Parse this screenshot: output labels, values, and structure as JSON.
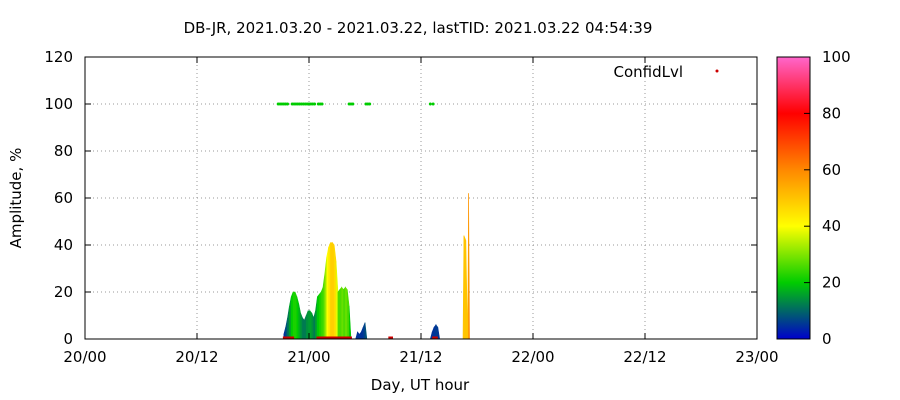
{
  "chart_data": {
    "type": "area",
    "title": "DB-JR, 2021.03.20 - 2021.03.22, lastTID: 2021.03.22 04:54:39",
    "xlabel": "Day, UT hour",
    "ylabel": "Amplitude, %",
    "xlim": [
      0,
      72
    ],
    "ylim": [
      0,
      120
    ],
    "x_ticks": [
      {
        "value": 0,
        "label": "20/00"
      },
      {
        "value": 12,
        "label": "20/12"
      },
      {
        "value": 24,
        "label": "21/00"
      },
      {
        "value": 36,
        "label": "21/12"
      },
      {
        "value": 48,
        "label": "22/00"
      },
      {
        "value": 60,
        "label": "22/12"
      },
      {
        "value": 72,
        "label": "23/00"
      }
    ],
    "y_ticks": [
      0,
      20,
      40,
      60,
      80,
      100,
      120
    ],
    "grid": true,
    "legend": {
      "label": "ConfidLvl",
      "position": "top-right"
    },
    "colorbar": {
      "min": 0,
      "max": 100,
      "ticks": [
        0,
        20,
        40,
        60,
        80,
        100
      ],
      "stops": [
        "#0000cc",
        "#00cc00",
        "#ffff00",
        "#ff8800",
        "#ff0000",
        "#ff66cc"
      ]
    },
    "amplitude_series": [
      {
        "x": 21.3,
        "y": 2
      },
      {
        "x": 21.5,
        "y": 5
      },
      {
        "x": 21.7,
        "y": 9
      },
      {
        "x": 21.9,
        "y": 14
      },
      {
        "x": 22.1,
        "y": 18
      },
      {
        "x": 22.3,
        "y": 20
      },
      {
        "x": 22.5,
        "y": 20
      },
      {
        "x": 22.7,
        "y": 18
      },
      {
        "x": 22.9,
        "y": 15
      },
      {
        "x": 23.1,
        "y": 11
      },
      {
        "x": 23.3,
        "y": 9
      },
      {
        "x": 23.5,
        "y": 8
      },
      {
        "x": 23.7,
        "y": 10
      },
      {
        "x": 23.9,
        "y": 12
      },
      {
        "x": 24.1,
        "y": 12
      },
      {
        "x": 24.3,
        "y": 11
      },
      {
        "x": 24.5,
        "y": 9
      },
      {
        "x": 24.7,
        "y": 12
      },
      {
        "x": 24.9,
        "y": 18
      },
      {
        "x": 25.1,
        "y": 19
      },
      {
        "x": 25.3,
        "y": 20
      },
      {
        "x": 25.5,
        "y": 22
      },
      {
        "x": 25.7,
        "y": 28
      },
      {
        "x": 25.9,
        "y": 35
      },
      {
        "x": 26.1,
        "y": 39
      },
      {
        "x": 26.3,
        "y": 41
      },
      {
        "x": 26.5,
        "y": 41
      },
      {
        "x": 26.7,
        "y": 40
      },
      {
        "x": 26.9,
        "y": 33
      },
      {
        "x": 27.1,
        "y": 20
      },
      {
        "x": 27.3,
        "y": 21
      },
      {
        "x": 27.5,
        "y": 22
      },
      {
        "x": 27.7,
        "y": 21
      },
      {
        "x": 27.9,
        "y": 22
      },
      {
        "x": 28.1,
        "y": 21
      },
      {
        "x": 28.3,
        "y": 14
      },
      {
        "x": 28.5,
        "y": 0
      },
      {
        "x": 29.0,
        "y": 0
      },
      {
        "x": 29.2,
        "y": 3
      },
      {
        "x": 29.4,
        "y": 2
      },
      {
        "x": 29.6,
        "y": 3
      },
      {
        "x": 29.8,
        "y": 5
      },
      {
        "x": 30.0,
        "y": 7
      },
      {
        "x": 30.2,
        "y": 0
      },
      {
        "x": 31.0,
        "y": 0
      },
      {
        "x": 31.2,
        "y": 0
      },
      {
        "x": 31.5,
        "y": 0
      },
      {
        "x": 33.0,
        "y": 0
      },
      {
        "x": 35.0,
        "y": 0
      },
      {
        "x": 37.0,
        "y": 0
      },
      {
        "x": 37.2,
        "y": 3
      },
      {
        "x": 37.4,
        "y": 5
      },
      {
        "x": 37.6,
        "y": 6
      },
      {
        "x": 37.8,
        "y": 5
      },
      {
        "x": 38.0,
        "y": 0
      },
      {
        "x": 40.5,
        "y": 0
      },
      {
        "x": 40.6,
        "y": 44
      },
      {
        "x": 40.8,
        "y": 42
      },
      {
        "x": 41.0,
        "y": 0
      },
      {
        "x": 41.1,
        "y": 62
      },
      {
        "x": 41.2,
        "y": 0
      }
    ],
    "confidence_series": [
      {
        "x": 21.3,
        "c": 5
      },
      {
        "x": 21.5,
        "c": 8
      },
      {
        "x": 21.7,
        "c": 12
      },
      {
        "x": 21.9,
        "c": 16
      },
      {
        "x": 22.1,
        "c": 20
      },
      {
        "x": 22.3,
        "c": 22
      },
      {
        "x": 22.5,
        "c": 22
      },
      {
        "x": 22.7,
        "c": 20
      },
      {
        "x": 22.9,
        "c": 17
      },
      {
        "x": 23.1,
        "c": 14
      },
      {
        "x": 23.3,
        "c": 12
      },
      {
        "x": 23.5,
        "c": 12
      },
      {
        "x": 23.7,
        "c": 14
      },
      {
        "x": 23.9,
        "c": 15
      },
      {
        "x": 24.1,
        "c": 16
      },
      {
        "x": 24.3,
        "c": 14
      },
      {
        "x": 24.5,
        "c": 12
      },
      {
        "x": 24.7,
        "c": 16
      },
      {
        "x": 24.9,
        "c": 20
      },
      {
        "x": 25.1,
        "c": 22
      },
      {
        "x": 25.3,
        "c": 24
      },
      {
        "x": 25.5,
        "c": 26
      },
      {
        "x": 25.7,
        "c": 32
      },
      {
        "x": 25.9,
        "c": 40
      },
      {
        "x": 26.1,
        "c": 44
      },
      {
        "x": 26.3,
        "c": 48
      },
      {
        "x": 26.5,
        "c": 48
      },
      {
        "x": 26.7,
        "c": 46
      },
      {
        "x": 26.9,
        "c": 38
      },
      {
        "x": 27.1,
        "c": 26
      },
      {
        "x": 27.3,
        "c": 26
      },
      {
        "x": 27.5,
        "c": 28
      },
      {
        "x": 27.7,
        "c": 26
      },
      {
        "x": 27.9,
        "c": 28
      },
      {
        "x": 28.1,
        "c": 26
      },
      {
        "x": 28.3,
        "c": 20
      },
      {
        "x": 28.5,
        "c": 10
      },
      {
        "x": 29.0,
        "c": 5
      },
      {
        "x": 29.2,
        "c": 5
      },
      {
        "x": 29.4,
        "c": 5
      },
      {
        "x": 29.6,
        "c": 5
      },
      {
        "x": 29.8,
        "c": 6
      },
      {
        "x": 30.0,
        "c": 8
      },
      {
        "x": 30.2,
        "c": 5
      },
      {
        "x": 31.0,
        "c": 5
      },
      {
        "x": 31.2,
        "c": 5
      },
      {
        "x": 31.5,
        "c": 5
      },
      {
        "x": 33.0,
        "c": 5
      },
      {
        "x": 35.0,
        "c": 5
      },
      {
        "x": 37.0,
        "c": 5
      },
      {
        "x": 37.2,
        "c": 5
      },
      {
        "x": 37.4,
        "c": 5
      },
      {
        "x": 37.6,
        "c": 6
      },
      {
        "x": 37.8,
        "c": 5
      },
      {
        "x": 38.0,
        "c": 5
      },
      {
        "x": 40.5,
        "c": 50
      },
      {
        "x": 40.6,
        "c": 50
      },
      {
        "x": 40.8,
        "c": 50
      },
      {
        "x": 41.0,
        "c": 50
      },
      {
        "x": 41.1,
        "c": 60
      },
      {
        "x": 41.2,
        "c": 60
      }
    ],
    "baseline_segments": [
      {
        "x0": 21.2,
        "x1": 22.4,
        "color": "#cc0000"
      },
      {
        "x0": 24.8,
        "x1": 28.6,
        "color": "#cc0000"
      },
      {
        "x0": 32.5,
        "x1": 33.0,
        "color": "#cc0000"
      },
      {
        "x0": 37.2,
        "x1": 37.8,
        "color": "#cc0000"
      }
    ],
    "marker_points_100": [
      20.7,
      20.9,
      21.1,
      21.3,
      21.5,
      21.7,
      22.2,
      22.4,
      22.6,
      22.8,
      23.0,
      23.2,
      23.4,
      23.6,
      23.8,
      24.0,
      24.2,
      24.4,
      24.6,
      25.0,
      25.2,
      25.4,
      28.3,
      28.5,
      28.7,
      30.1,
      30.3,
      30.5,
      37.0,
      37.3
    ],
    "marker_color": "#00cc00"
  }
}
